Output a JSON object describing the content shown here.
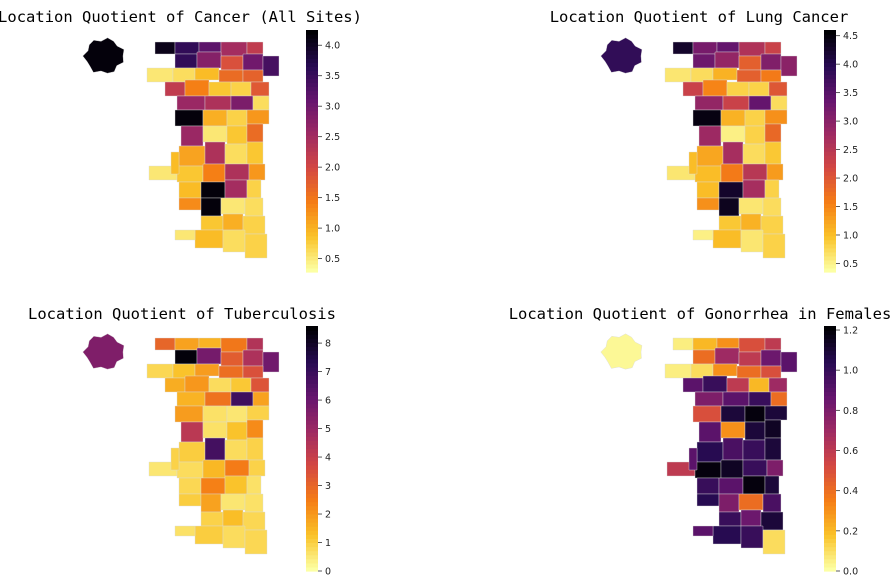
{
  "palette": [
    "#fcffa4",
    "#fac228",
    "#f57d15",
    "#d44842",
    "#9f2a63",
    "#65156e",
    "#280b53",
    "#000004"
  ],
  "chart_data": [
    {
      "type": "choropleth",
      "title": "Location Quotient of Cancer (All Sites)",
      "colorbar": {
        "min": 0.28,
        "max": 4.25,
        "ticks": [
          "0.5",
          "1.0",
          "1.5",
          "2.0",
          "2.5",
          "3.0",
          "3.5",
          "4.0"
        ],
        "tick_values": [
          0.5,
          1.0,
          1.5,
          2.0,
          2.5,
          3.0,
          3.5,
          4.0
        ]
      },
      "region_values": [
        4.2,
        4.1,
        3.6,
        3.2,
        2.5,
        2.2,
        3.6,
        2.8,
        1.9,
        3.0,
        3.4,
        0.5,
        0.6,
        0.9,
        1.6,
        1.7,
        2.2,
        1.4,
        0.8,
        0.7,
        1.8,
        2.6,
        2.4,
        2.9,
        0.6,
        4.2,
        1.0,
        0.7,
        1.2,
        2.6,
        0.5,
        0.8,
        1.6,
        1.1,
        2.4,
        0.6,
        0.8,
        0.5,
        0.8,
        1.4,
        2.4,
        1.2,
        0.9,
        4.2,
        2.5,
        0.7,
        1.3,
        0.9,
        4.2,
        0.5,
        0.6,
        0.8,
        1.0,
        0.7,
        0.9,
        0.6,
        0.5,
        0.7
      ]
    },
    {
      "type": "choropleth",
      "title": "Location Quotient of Lung Cancer",
      "colorbar": {
        "min": 0.35,
        "max": 4.6,
        "ticks": [
          "0.5",
          "1.0",
          "1.5",
          "2.0",
          "2.5",
          "3.0",
          "3.5",
          "4.0",
          "4.5"
        ],
        "tick_values": [
          0.5,
          1.0,
          1.5,
          2.0,
          2.5,
          3.0,
          3.5,
          4.0,
          4.5
        ]
      },
      "region_values": [
        3.9,
        4.3,
        3.2,
        3.4,
        2.6,
        2.3,
        3.3,
        2.9,
        1.9,
        3.1,
        3.0,
        0.6,
        0.7,
        1.1,
        1.9,
        1.6,
        2.3,
        1.5,
        0.8,
        0.8,
        2.0,
        2.9,
        2.3,
        3.4,
        0.7,
        4.5,
        1.1,
        0.8,
        1.4,
        2.8,
        0.5,
        0.8,
        1.8,
        1.2,
        2.7,
        0.7,
        0.9,
        0.6,
        1.0,
        1.6,
        2.5,
        1.3,
        1.0,
        4.3,
        2.7,
        0.8,
        1.4,
        1.0,
        4.4,
        0.6,
        0.7,
        0.9,
        1.1,
        0.8,
        1.0,
        0.6,
        0.5,
        0.8
      ]
    },
    {
      "type": "choropleth",
      "title": "Location Quotient of Tuberculosis",
      "colorbar": {
        "min": 0,
        "max": 8.6,
        "ticks": [
          "0",
          "1",
          "2",
          "3",
          "4",
          "5",
          "6",
          "7",
          "8"
        ],
        "tick_values": [
          0,
          1,
          2,
          3,
          4,
          5,
          6,
          7,
          8
        ]
      },
      "region_values": [
        5.6,
        3.0,
        1.8,
        1.5,
        2.6,
        4.5,
        8.5,
        5.8,
        3.2,
        4.6,
        5.9,
        0.8,
        1.2,
        1.9,
        2.8,
        3.5,
        1.6,
        2.0,
        0.7,
        1.1,
        3.4,
        1.5,
        2.7,
        6.9,
        1.8,
        1.9,
        0.6,
        0.5,
        0.9,
        4.3,
        0.6,
        1.2,
        2.2,
        1.0,
        6.8,
        0.7,
        0.9,
        0.5,
        0.7,
        1.4,
        2.5,
        0.9,
        0.8,
        2.4,
        1.2,
        0.6,
        1.0,
        0.9,
        1.8,
        0.5,
        0.6,
        0.9,
        1.3,
        0.8,
        1.0,
        0.7,
        0.6,
        0.8
      ]
    },
    {
      "type": "choropleth",
      "title": "Location Quotient of Gonorrhea in Females",
      "colorbar": {
        "min": 0,
        "max": 1.22,
        "ticks": [
          "0.0",
          "0.2",
          "0.4",
          "0.6",
          "0.8",
          "1.0",
          "1.2"
        ],
        "tick_values": [
          0.0,
          0.2,
          0.4,
          0.6,
          0.8,
          1.0,
          1.2
        ]
      },
      "region_values": [
        0.02,
        0.05,
        0.2,
        0.3,
        0.5,
        0.6,
        0.4,
        0.7,
        0.6,
        0.85,
        0.9,
        0.05,
        0.1,
        0.3,
        0.4,
        0.5,
        0.9,
        1.0,
        0.6,
        0.2,
        0.7,
        0.8,
        0.9,
        1.0,
        0.4,
        0.5,
        1.1,
        1.2,
        1.1,
        0.9,
        0.3,
        1.1,
        1.15,
        1.05,
        0.95,
        1.0,
        1.1,
        0.6,
        1.2,
        1.15,
        1.0,
        0.8,
        1.0,
        0.9,
        1.2,
        1.1,
        1.05,
        0.9,
        0.8,
        0.4,
        0.95,
        1.0,
        0.85,
        1.1,
        1.05,
        1.0,
        0.9,
        0.1
      ]
    }
  ]
}
